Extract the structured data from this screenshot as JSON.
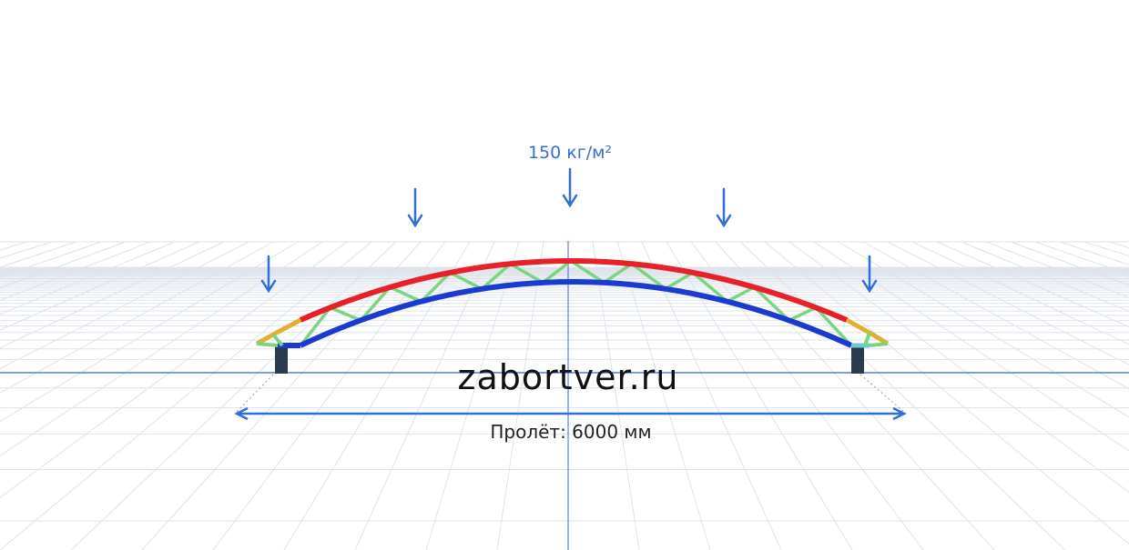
{
  "load_label": "150 кг/м²",
  "watermark": "zabortver.ru",
  "span_label": "Пролёт: 6000 мм"
}
